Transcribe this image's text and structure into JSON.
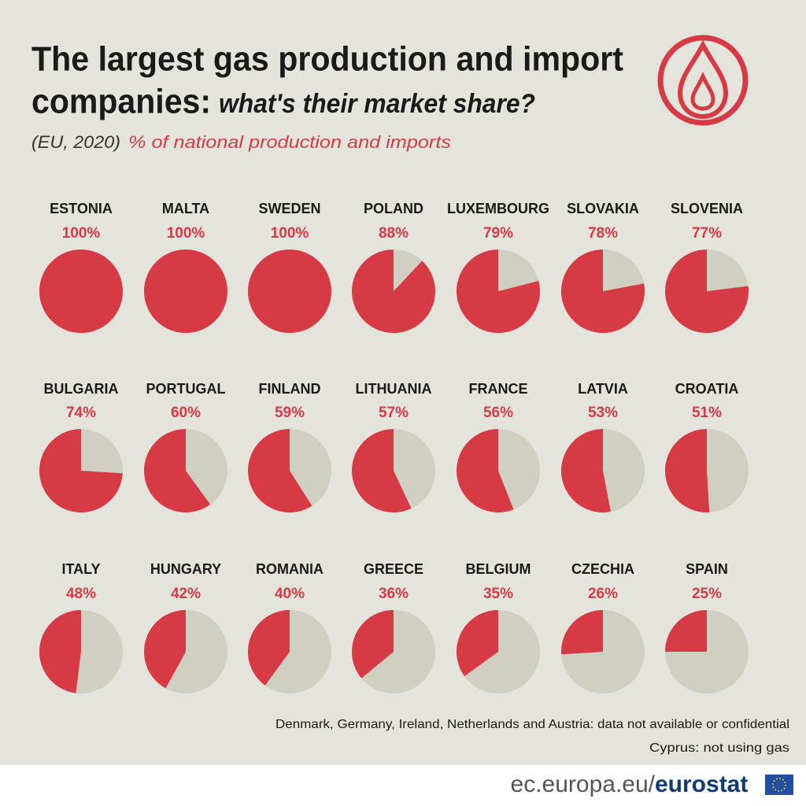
{
  "chart_data": {
    "type": "pie",
    "title_line1": "The largest gas production and import",
    "title_line2_bold": "companies:",
    "title_line2_italic": "what's their market share?",
    "subtitle_scope": "(EU, 2020)",
    "subtitle_unit": "% of national production and imports",
    "categories": [
      "ESTONIA",
      "MALTA",
      "SWEDEN",
      "POLAND",
      "LUXEMBOURG",
      "SLOVAKIA",
      "SLOVENIA",
      "BULGARIA",
      "PORTUGAL",
      "FINLAND",
      "LITHUANIA",
      "FRANCE",
      "LATVIA",
      "CROATIA",
      "ITALY",
      "HUNGARY",
      "ROMANIA",
      "GREECE",
      "BELGIUM",
      "CZECHIA",
      "SPAIN"
    ],
    "values": [
      100,
      100,
      100,
      88,
      79,
      78,
      77,
      74,
      60,
      59,
      57,
      56,
      53,
      51,
      48,
      42,
      40,
      36,
      35,
      26,
      25
    ],
    "value_labels": [
      "100%",
      "100%",
      "100%",
      "88%",
      "79%",
      "78%",
      "77%",
      "74%",
      "60%",
      "59%",
      "57%",
      "56%",
      "53%",
      "51%",
      "48%",
      "42%",
      "40%",
      "36%",
      "35%",
      "26%",
      "25%"
    ],
    "color": "#d63a44",
    "remainder_color": "#d1cfc1",
    "notes": [
      "Denmark, Germany, Ireland, Netherlands and Austria: data not available or confidential",
      "Cyprus: not using gas"
    ],
    "source_domain": "ec.europa.eu/",
    "source_name": "eurostat"
  }
}
